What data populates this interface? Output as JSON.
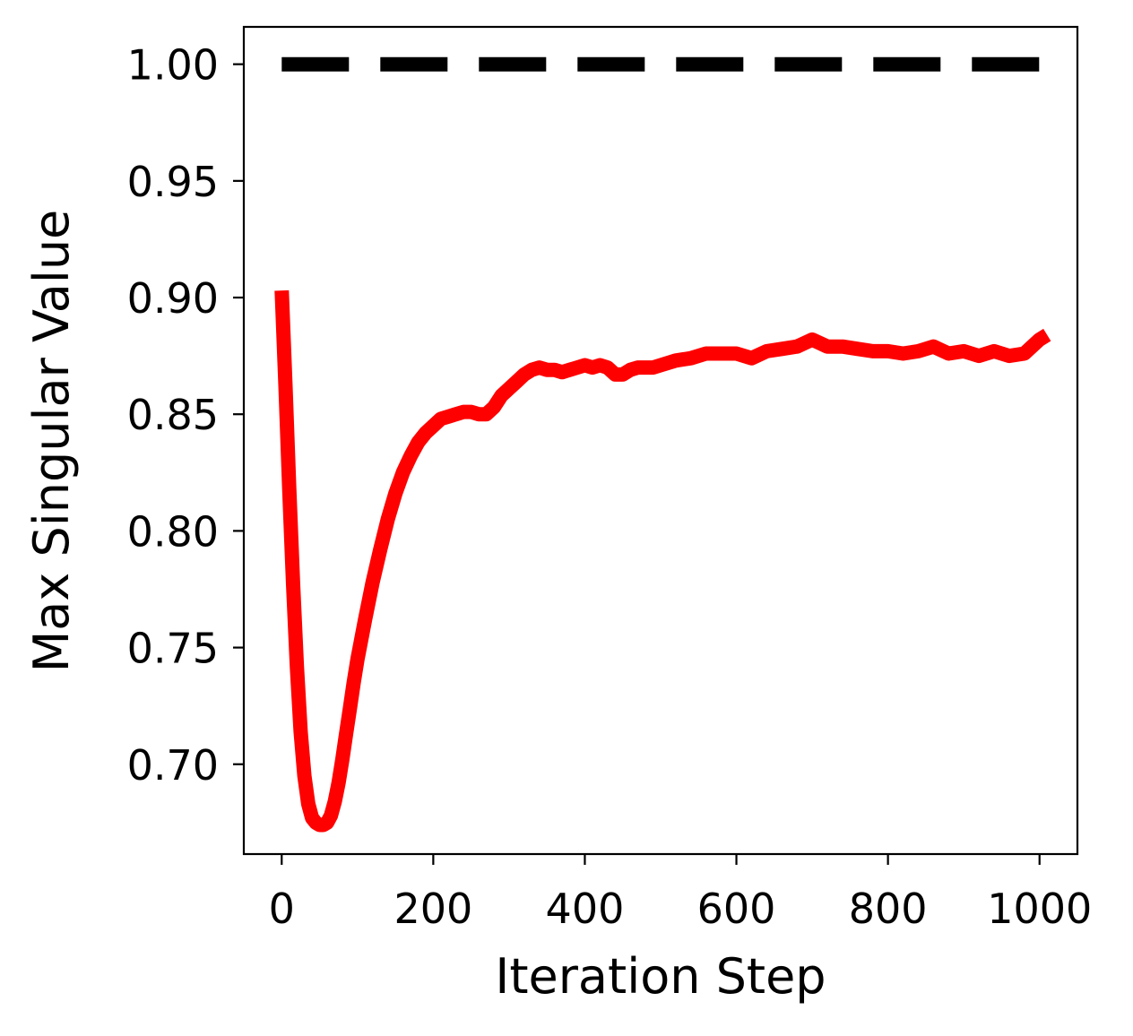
{
  "chart_data": {
    "type": "line",
    "title": "",
    "xlabel": "Iteration Step",
    "ylabel": "Max Singular Value",
    "xlim": [
      -50,
      1050
    ],
    "ylim": [
      0.6615,
      1.016
    ],
    "x_ticks": [
      0,
      200,
      400,
      600,
      800,
      1000
    ],
    "x_tick_labels": [
      "0",
      "200",
      "400",
      "600",
      "800",
      "1000"
    ],
    "y_ticks": [
      0.7,
      0.75,
      0.8,
      0.85,
      0.9,
      0.95,
      1.0
    ],
    "y_tick_labels": [
      "0.70",
      "0.75",
      "0.80",
      "0.85",
      "0.90",
      "0.95",
      "1.00"
    ],
    "grid": false,
    "series": [
      {
        "color": "#ff0000",
        "style": "solid",
        "x": [
          0,
          5,
          10,
          15,
          20,
          25,
          30,
          35,
          40,
          45,
          50,
          55,
          60,
          65,
          70,
          75,
          80,
          85,
          90,
          95,
          100,
          110,
          120,
          130,
          140,
          150,
          160,
          170,
          180,
          190,
          200,
          210,
          220,
          230,
          240,
          250,
          260,
          270,
          280,
          290,
          300,
          310,
          320,
          330,
          340,
          350,
          360,
          370,
          380,
          390,
          400,
          410,
          420,
          430,
          440,
          450,
          460,
          470,
          480,
          490,
          500,
          520,
          540,
          560,
          580,
          600,
          620,
          640,
          660,
          680,
          700,
          720,
          740,
          760,
          780,
          800,
          820,
          840,
          860,
          880,
          900,
          920,
          940,
          960,
          980,
          1000,
          1010
        ],
        "y": [
          0.903,
          0.862,
          0.818,
          0.777,
          0.742,
          0.714,
          0.695,
          0.683,
          0.677,
          0.675,
          0.674,
          0.674,
          0.675,
          0.678,
          0.684,
          0.692,
          0.702,
          0.713,
          0.724,
          0.735,
          0.745,
          0.762,
          0.778,
          0.792,
          0.805,
          0.816,
          0.825,
          0.832,
          0.838,
          0.842,
          0.845,
          0.848,
          0.849,
          0.85,
          0.851,
          0.851,
          0.85,
          0.85,
          0.853,
          0.858,
          0.861,
          0.864,
          0.867,
          0.869,
          0.87,
          0.869,
          0.869,
          0.868,
          0.869,
          0.87,
          0.871,
          0.87,
          0.871,
          0.87,
          0.867,
          0.867,
          0.869,
          0.87,
          0.87,
          0.87,
          0.871,
          0.873,
          0.874,
          0.876,
          0.876,
          0.876,
          0.874,
          0.877,
          0.878,
          0.879,
          0.882,
          0.879,
          0.879,
          0.878,
          0.877,
          0.877,
          0.876,
          0.877,
          0.879,
          0.876,
          0.877,
          0.875,
          0.877,
          0.875,
          0.876,
          0.882,
          0.884
        ]
      },
      {
        "color": "#000000",
        "style": "dashed",
        "x": [
          0,
          1000
        ],
        "y": [
          1.0,
          1.0
        ]
      }
    ]
  }
}
